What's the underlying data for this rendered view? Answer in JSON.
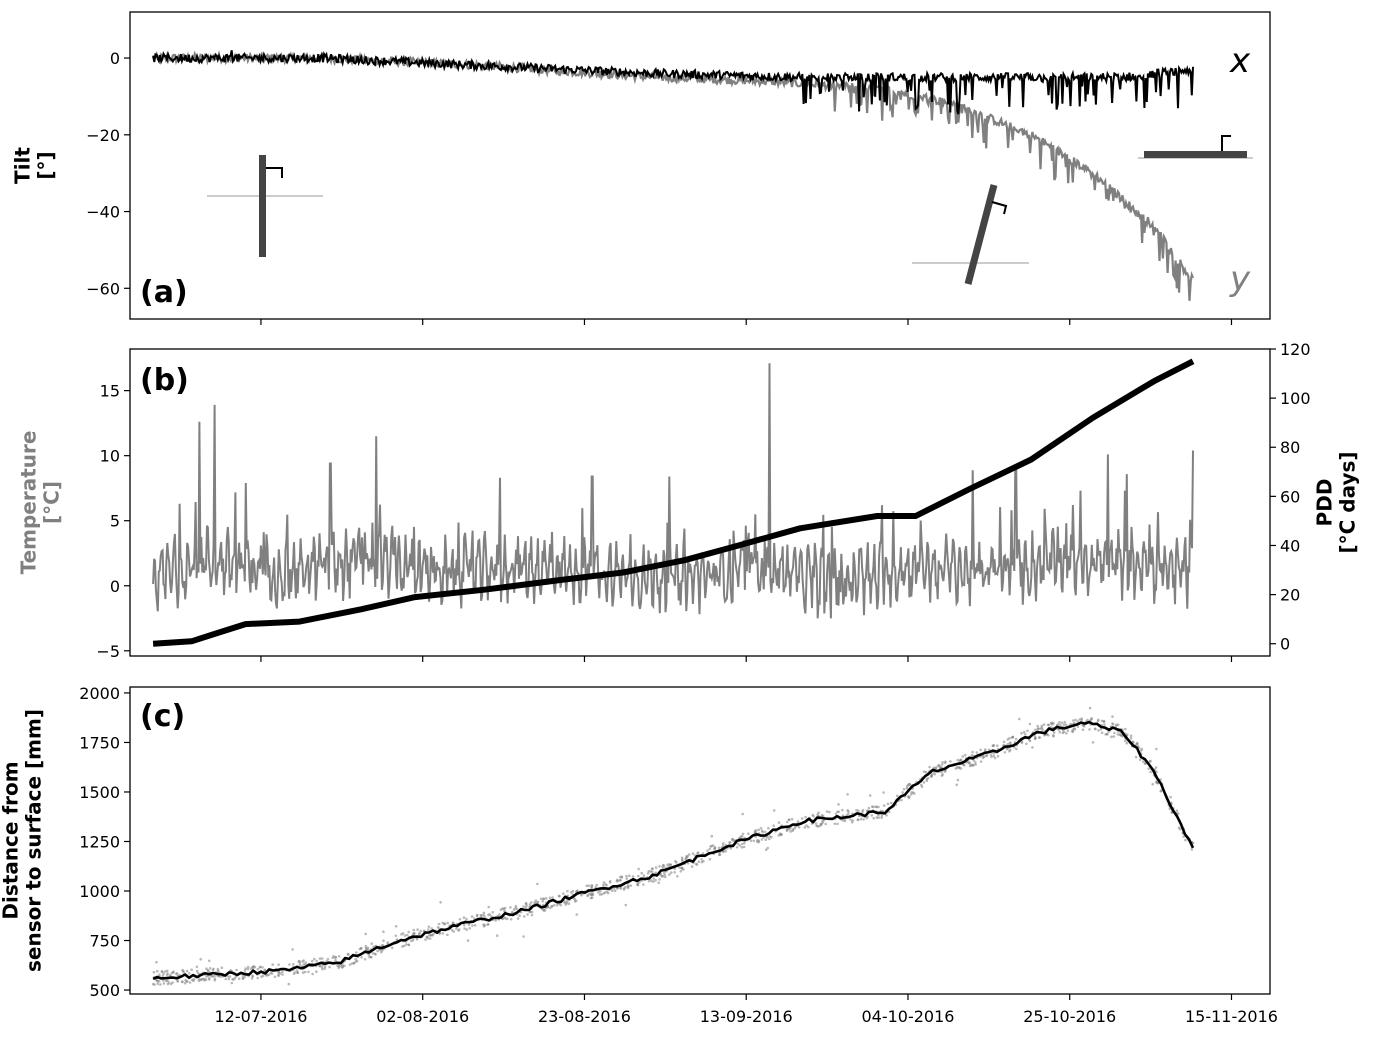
{
  "chart_data": [
    {
      "type": "line",
      "panel_label": "(a)",
      "ylabel": "Tilt\n[°]",
      "ylim": [
        -68,
        12
      ],
      "yticks": [
        0,
        -20,
        -40,
        -60
      ],
      "ytick_labels": [
        "0",
        "−20",
        "−40",
        "−60"
      ],
      "grid": false,
      "series": [
        {
          "name": "x",
          "color": "#000000",
          "x": [
            "2016-06-28",
            "2016-07-20",
            "2016-08-10",
            "2016-09-01",
            "2016-09-20",
            "2016-10-05",
            "2016-10-20",
            "2016-11-01",
            "2016-11-10"
          ],
          "y": [
            0,
            0,
            -2,
            -4,
            -5,
            -5,
            -5,
            -5,
            -3
          ]
        },
        {
          "name": "y",
          "color": "#808080",
          "x": [
            "2016-06-28",
            "2016-07-20",
            "2016-08-10",
            "2016-09-01",
            "2016-09-15",
            "2016-10-01",
            "2016-10-10",
            "2016-10-20",
            "2016-10-28",
            "2016-11-05",
            "2016-11-10"
          ],
          "y": [
            0,
            0,
            -2,
            -5,
            -6,
            -8,
            -12,
            -20,
            -30,
            -44,
            -58
          ]
        }
      ],
      "annotations": [
        "x",
        "y"
      ]
    },
    {
      "type": "line",
      "panel_label": "(b)",
      "ylabel": "Temperature\n[°C]",
      "y2label": "PDD\n[°C days]",
      "ylim": [
        -5.4,
        18.2
      ],
      "y2lim": [
        -5,
        120
      ],
      "yticks": [
        15,
        10,
        5,
        0,
        -5
      ],
      "ytick_labels": [
        "15",
        "10",
        "5",
        "0",
        "−5"
      ],
      "y2ticks": [
        120,
        100,
        80,
        60,
        40,
        20,
        0
      ],
      "y2tick_labels": [
        "120",
        "100",
        "80",
        "60",
        "40",
        "20",
        "0"
      ],
      "grid": false,
      "series": [
        {
          "name": "Temperature",
          "axis": "left",
          "color": "#808080",
          "x": [
            "2016-06-28",
            "2016-07-05",
            "2016-07-15",
            "2016-07-25",
            "2016-08-05",
            "2016-08-15",
            "2016-08-25",
            "2016-09-05",
            "2016-09-15",
            "2016-09-25",
            "2016-10-05",
            "2016-10-15",
            "2016-10-25",
            "2016-11-05",
            "2016-11-10"
          ],
          "y": [
            0.5,
            2.0,
            1.0,
            2.0,
            1.0,
            1.5,
            1.0,
            0.5,
            1.5,
            0.0,
            1.5,
            1.0,
            2.0,
            1.5,
            1.0
          ],
          "peaks": [
            {
              "x": "2016-07-04",
              "y": 12.6
            },
            {
              "x": "2016-07-06",
              "y": 13.9
            },
            {
              "x": "2016-07-10",
              "y": 7.9
            },
            {
              "x": "2016-07-21",
              "y": 9.4
            },
            {
              "x": "2016-07-27",
              "y": 11.5
            },
            {
              "x": "2016-08-12",
              "y": 8.3
            },
            {
              "x": "2016-08-24",
              "y": 8.4
            },
            {
              "x": "2016-09-03",
              "y": 8.4
            },
            {
              "x": "2016-09-16",
              "y": 17.1
            },
            {
              "x": "2016-10-18",
              "y": 9.2
            },
            {
              "x": "2016-10-30",
              "y": 10.1
            },
            {
              "x": "2016-11-10",
              "y": 10.4
            }
          ]
        },
        {
          "name": "PDD",
          "axis": "right",
          "color": "#000000",
          "x": [
            "2016-06-28",
            "2016-07-03",
            "2016-07-06",
            "2016-07-10",
            "2016-07-17",
            "2016-07-25",
            "2016-08-01",
            "2016-08-10",
            "2016-08-20",
            "2016-08-28",
            "2016-09-05",
            "2016-09-12",
            "2016-09-20",
            "2016-09-30",
            "2016-10-05",
            "2016-10-12",
            "2016-10-20",
            "2016-10-28",
            "2016-11-05",
            "2016-11-10"
          ],
          "y": [
            0,
            1,
            4,
            8,
            9,
            14,
            19,
            22,
            26,
            29,
            34,
            40,
            47,
            52,
            52,
            63,
            75,
            92,
            107,
            115
          ]
        }
      ]
    },
    {
      "type": "line",
      "panel_label": "(c)",
      "ylabel": "Distance from\nsensor to surface [mm]",
      "ylim": [
        480,
        2030
      ],
      "yticks": [
        2000,
        1750,
        1500,
        1250,
        1000,
        750,
        500
      ],
      "ytick_labels": [
        "2000",
        "1750",
        "1500",
        "1250",
        "1000",
        "750",
        "500"
      ],
      "xticks": [
        "2016-07-12",
        "2016-08-02",
        "2016-08-23",
        "2016-09-13",
        "2016-10-04",
        "2016-10-25",
        "2016-11-15"
      ],
      "xtick_labels": [
        "12-07-2016",
        "02-08-2016",
        "23-08-2016",
        "13-09-2016",
        "04-10-2016",
        "25-10-2016",
        "15-11-2016"
      ],
      "xlim": [
        "2016-06-25",
        "2016-11-20"
      ],
      "grid": false,
      "series": [
        {
          "name": "",
          "color": "#000000",
          "x": [
            "2016-06-28",
            "2016-07-05",
            "2016-07-15",
            "2016-07-22",
            "2016-07-30",
            "2016-08-07",
            "2016-08-15",
            "2016-08-23",
            "2016-09-01",
            "2016-09-10",
            "2016-09-20",
            "2016-10-01",
            "2016-10-07",
            "2016-10-15",
            "2016-10-21",
            "2016-10-27",
            "2016-11-01",
            "2016-11-05",
            "2016-11-10"
          ],
          "y": [
            560,
            575,
            600,
            640,
            750,
            830,
            900,
            990,
            1080,
            1220,
            1350,
            1400,
            1600,
            1700,
            1800,
            1850,
            1800,
            1600,
            1215
          ]
        }
      ],
      "scatter_color": "#808080"
    }
  ]
}
